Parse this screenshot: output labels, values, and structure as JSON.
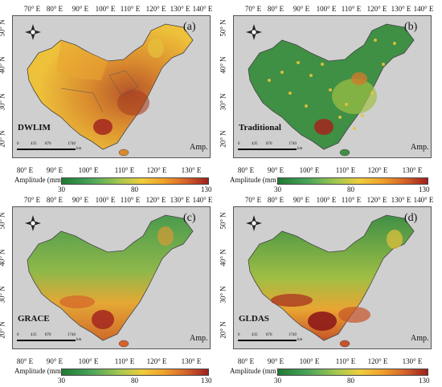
{
  "panels": [
    {
      "letter": "(a)",
      "method": "DWLIM",
      "amp": "Amp."
    },
    {
      "letter": "(b)",
      "method": "Traditional",
      "amp": "Amp."
    },
    {
      "letter": "(c)",
      "method": "GRACE",
      "amp": "Amp."
    },
    {
      "letter": "(d)",
      "method": "GLDAS",
      "amp": "Amp."
    }
  ],
  "top_ticks": [
    "70° E",
    "80° E",
    "90° E",
    "100° E",
    "110° E",
    "120° E",
    "130° E",
    "140° E"
  ],
  "bottom_ticks": [
    "80° E",
    "90° E",
    "100° E",
    "110° E",
    "120° E",
    "130° E"
  ],
  "lat_ticks": [
    "50° N",
    "40° N",
    "30° N",
    "20° N"
  ],
  "scale_labels": [
    "0",
    "435",
    "870",
    "1740"
  ],
  "scale_unit": "km",
  "legend": {
    "title": "Amplitude (mm)",
    "min": "30",
    "mid": "80",
    "max": "130"
  },
  "colors": {
    "low": "#1f7a34",
    "mid": "#f0cc3c",
    "high": "#9e1f1f",
    "background": "#cfcfcf"
  }
}
